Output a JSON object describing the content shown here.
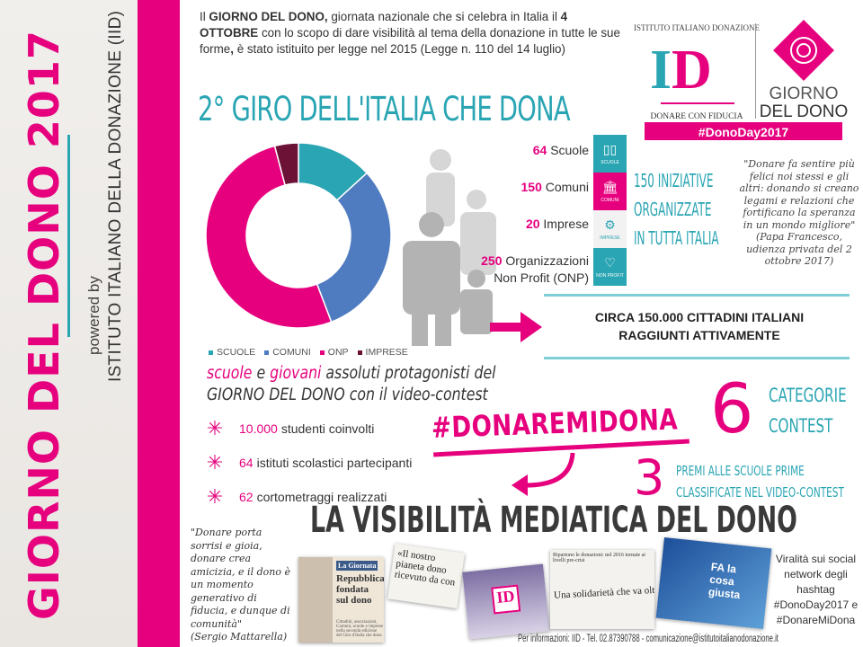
{
  "sidebar": {
    "title": "GIORNO DEL DONO 2017",
    "powered_by": "powered by",
    "institute": "ISTITUTO ITALIANO DELLA DONAZIONE (IID)"
  },
  "intro": {
    "p1": "Il ",
    "b1": "GIORNO DEL DONO,",
    "p2": " giornata nazionale che si celebra in Italia il ",
    "b2": "4 OTTOBRE",
    "p3": " con lo scopo di dare visibilità al tema della donazione in tutte le sue forme",
    "b3": ",",
    "p4": " è stato istituito per legge nel 2015 (Legge n. 110 del 14 luglio)"
  },
  "logo": {
    "arc_text": "ISTITUTO ITALIANO DONAZIONE",
    "mark": "ID",
    "tagline": "DONARE CON FIDUCIA",
    "giorno": "GIORNO",
    "del_dono": "DEL DONO",
    "hashtag": "#DonoDay2017"
  },
  "section_title": "2° GIRO DELL'ITALIA CHE DONA",
  "colors": {
    "pink": "#e6007e",
    "teal": "#2aa5b3",
    "blue": "#4f7cc0",
    "dark": "#6b1236"
  },
  "chart_data": {
    "type": "pie",
    "subtype": "donut",
    "categories": [
      "SCUOLE",
      "COMUNI",
      "ONP",
      "IMPRESE"
    ],
    "values": [
      64,
      150,
      250,
      20
    ],
    "colors": [
      "#2aa5b3",
      "#4f7cc0",
      "#e6007e",
      "#6b1236"
    ],
    "legend": "bottom"
  },
  "stats": [
    {
      "num": "64",
      "label": "Scuole",
      "icon": "book-icon",
      "badge": "SCUOLE"
    },
    {
      "num": "150",
      "label": "Comuni",
      "icon": "building-icon",
      "badge": "COMUNI"
    },
    {
      "num": "20",
      "label": "Imprese",
      "icon": "gears-icon",
      "badge": "IMPRESE"
    },
    {
      "num": "250",
      "label": "Organizzazioni",
      "label2": "Non Profit (ONP)",
      "icon": "heart-icon",
      "badge": "NON PROFIT"
    }
  ],
  "badge_prefix": "DONODAY",
  "iniziative": [
    "150 INIZIATIVE",
    "ORGANIZZATE",
    "IN TUTTA ITALIA"
  ],
  "quote_pope": {
    "text": "\"Donare fa sentire più felici noi stessi e gli altri: donando si creano legami e relazioni che fortificano la speranza in un mondo migliore\"",
    "source": "(Papa Francesco, udienza privata del 2 ottobre 2017)"
  },
  "circa": [
    "CIRCA 150.000 CITTADINI ITALIANI",
    "RAGGIUNTI ATTIVAMENTE"
  ],
  "giovani": {
    "w1": "scuole",
    "w2": " e ",
    "w3": "giovani",
    "w4": " assoluti protagonisti del",
    "line2a": "GIORNO DEL DONO",
    "line2b": " con il video-contest"
  },
  "bullets": [
    {
      "num": "10.000",
      "text": "studenti coinvolti"
    },
    {
      "num": "64",
      "text": "istituti scolastici partecipanti"
    },
    {
      "num": "62",
      "text": "cortometraggi realizzati"
    }
  ],
  "hashtag": "#DONAREMIDONA",
  "contest": {
    "num": "6",
    "l1": "CATEGORIE",
    "l2": "CONTEST"
  },
  "prizes": {
    "num": "3",
    "l1": "PREMI ALLE SCUOLE PRIME",
    "l2": "CLASSIFICATE NEL VIDEO-CONTEST"
  },
  "media_title": "LA VISIBILITÀ MEDIATICA DEL DONO",
  "quote_mattarella": {
    "text": "\"Donare porta sorrisi e gioia, donare crea amicizia, e il dono è un momento generativo di fiducia, e dunque di comunità\"",
    "source": "(Sergio Mattarella)"
  },
  "clippings": {
    "c1_head": "La Giornata",
    "c1_title": "Repubblica fondata sul dono",
    "c1_body": "Cittadini, associazioni, Comuni, scuole e imprese nella seconda edizione del Giro d'Italia che dona",
    "c2_title": "«Il nostro pianeta dono ricevuto da con",
    "c3_head": "Ripartono le donazioni: nel 2016 tornate ai livelli pre-crisi",
    "c3_title": "Una solidarietà che va oltre le emergenze",
    "c4_text": "FA la cosa giusta"
  },
  "viral": [
    "Viralità sui social network degli hashtag",
    "#DonoDay2017 e",
    "#DonareMiDona"
  ],
  "footer": "Per informazioni: IID - Tel. 02.87390788 - comunicazione@istitutoitalianodonazione.it"
}
